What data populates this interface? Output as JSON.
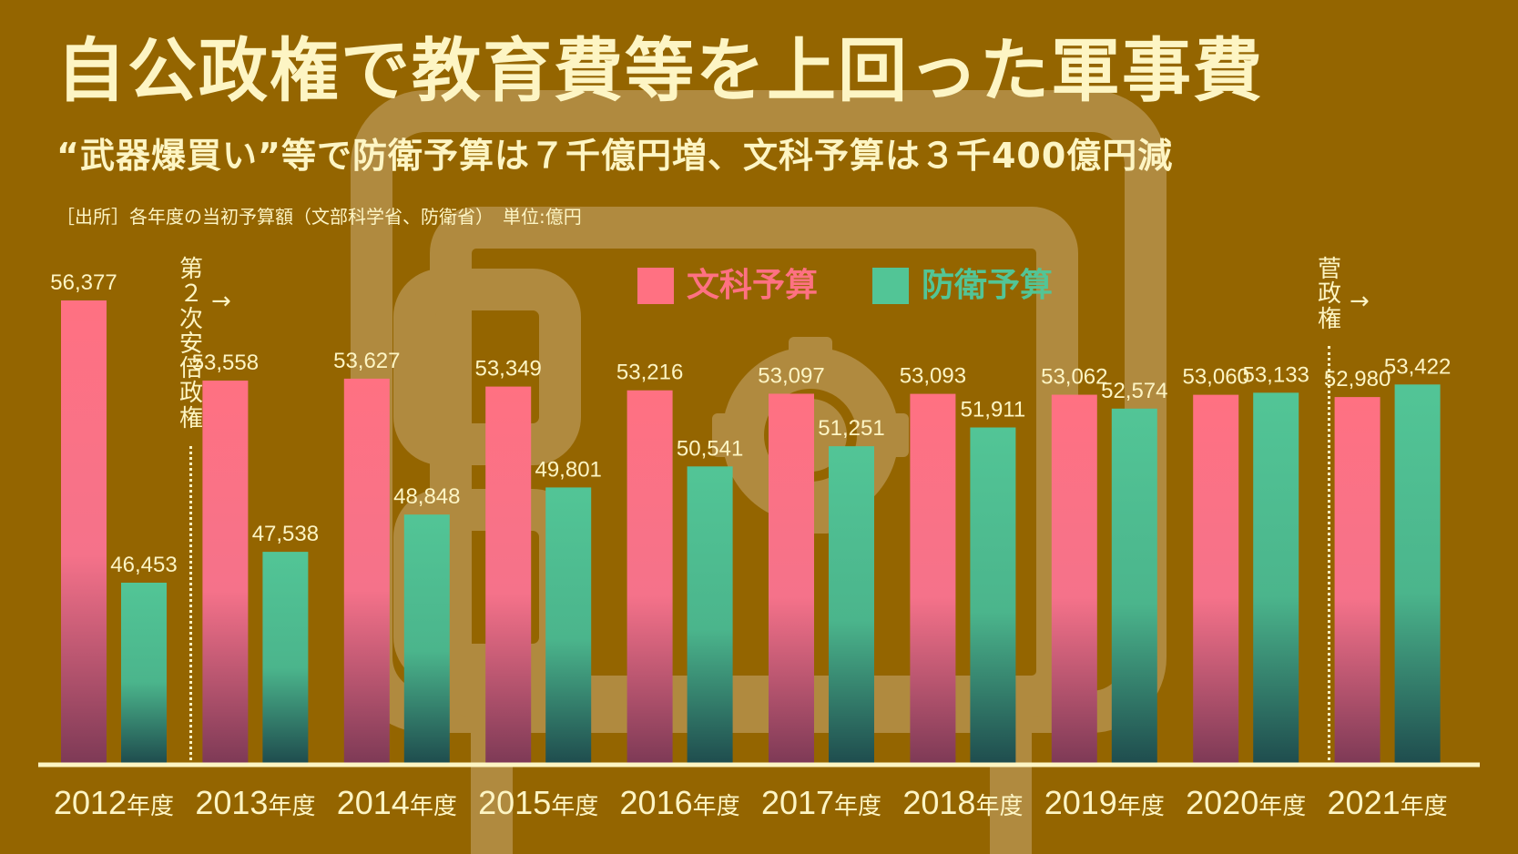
{
  "header": {
    "title": "自公政権で教育費等を上回った軍事費",
    "subtitle": "“武器爆買い”等で防衛予算は７千億円増、文科予算は３千400億円減",
    "source": "［出所］各年度の当初予算額（文部科学省、防衛省）　単位:億円"
  },
  "colors": {
    "background": "#946500",
    "monkasho": "#ff7182",
    "bouei": "#52c596",
    "text": "#fdf5c4"
  },
  "chart_data": {
    "type": "bar",
    "categories": [
      "2012年度",
      "2013年度",
      "2014年度",
      "2015年度",
      "2016年度",
      "2017年度",
      "2018年度",
      "2019年度",
      "2020年度",
      "2021年度"
    ],
    "year_numbers": [
      "2012",
      "2013",
      "2014",
      "2015",
      "2016",
      "2017",
      "2018",
      "2019",
      "2020",
      "2021"
    ],
    "year_suffix": "年度",
    "series": [
      {
        "name": "文科予算",
        "values": [
          56377,
          53558,
          53627,
          53349,
          53216,
          53097,
          53093,
          53062,
          53060,
          52980
        ]
      },
      {
        "name": "防衛予算",
        "values": [
          46453,
          47538,
          48848,
          49801,
          50541,
          51251,
          51911,
          52574,
          53133,
          53422
        ]
      }
    ],
    "value_labels": [
      [
        "56,377",
        "53,558",
        "53,627",
        "53,349",
        "53,216",
        "53,097",
        "53,093",
        "53,062",
        "53,060",
        "52,980"
      ],
      [
        "46,453",
        "47,538",
        "48,848",
        "49,801",
        "50,541",
        "51,251",
        "51,911",
        "52,574",
        "53,133",
        "53,422"
      ]
    ],
    "legend": [
      "文科予算",
      "防衛予算"
    ],
    "legend_position": "top-center",
    "grid": false,
    "annotations": [
      {
        "text": "第２次安倍政権",
        "arrow": "→",
        "between": [
          "2012年度",
          "2013年度"
        ]
      },
      {
        "text": "菅政権",
        "arrow": "→",
        "between": [
          "2020年度",
          "2021年度"
        ]
      }
    ]
  }
}
